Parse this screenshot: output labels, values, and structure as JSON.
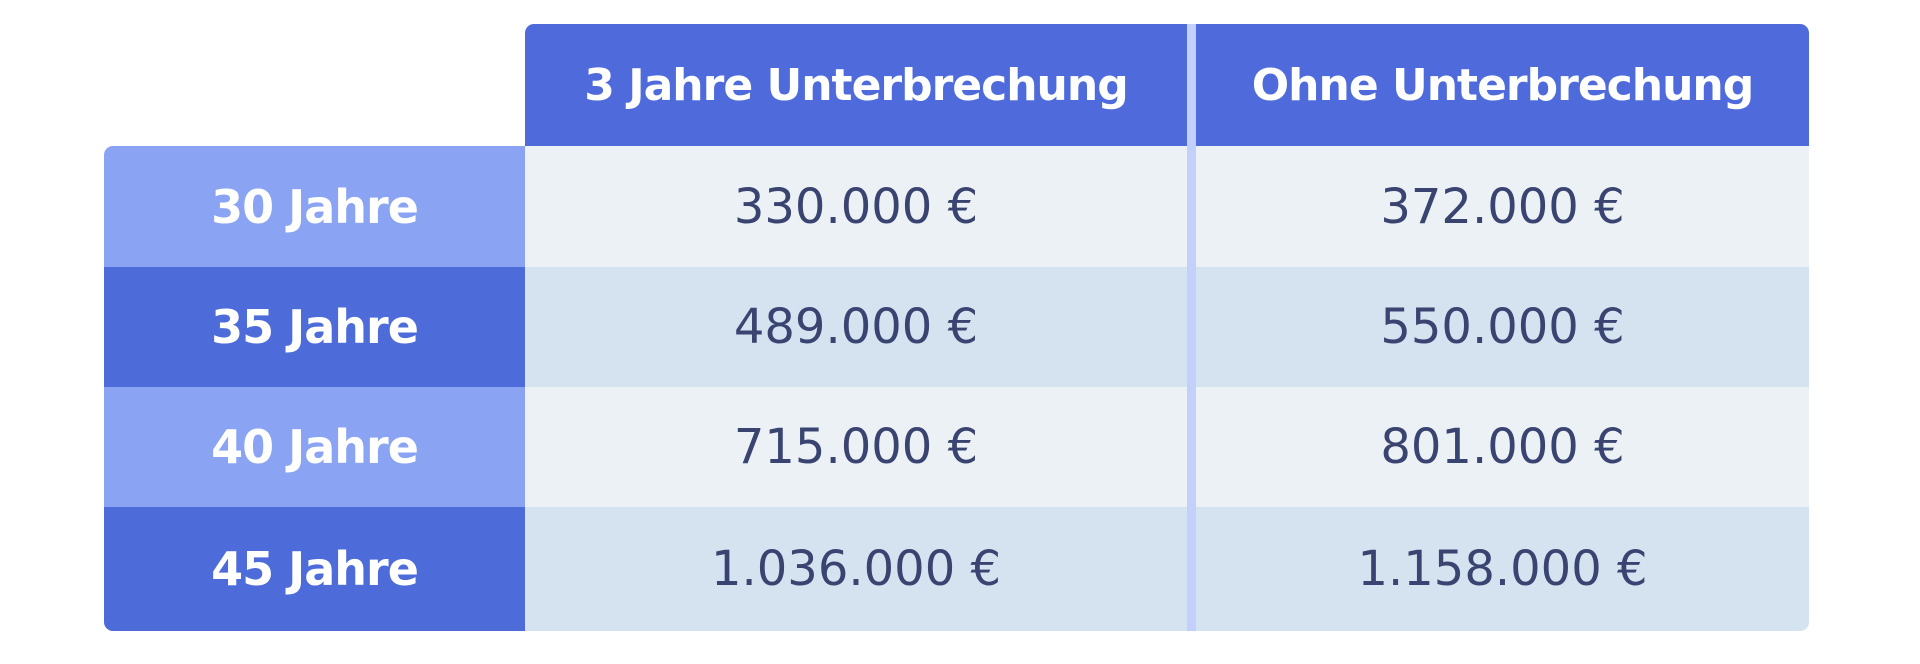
{
  "table": {
    "header": [
      "3 Jahre Unterbrechung",
      "Ohne Unterbrechung"
    ],
    "rows": [
      [
        "30 Jahre",
        "330.000 €",
        "372.000 €"
      ],
      [
        "35 Jahre",
        "489.000 €",
        "550.000 €"
      ],
      [
        "40 Jahre",
        "715.000 €",
        "801.000 €"
      ],
      [
        "45 Jahre",
        "1.036.000 €",
        "1.158.000 €"
      ]
    ]
  }
}
